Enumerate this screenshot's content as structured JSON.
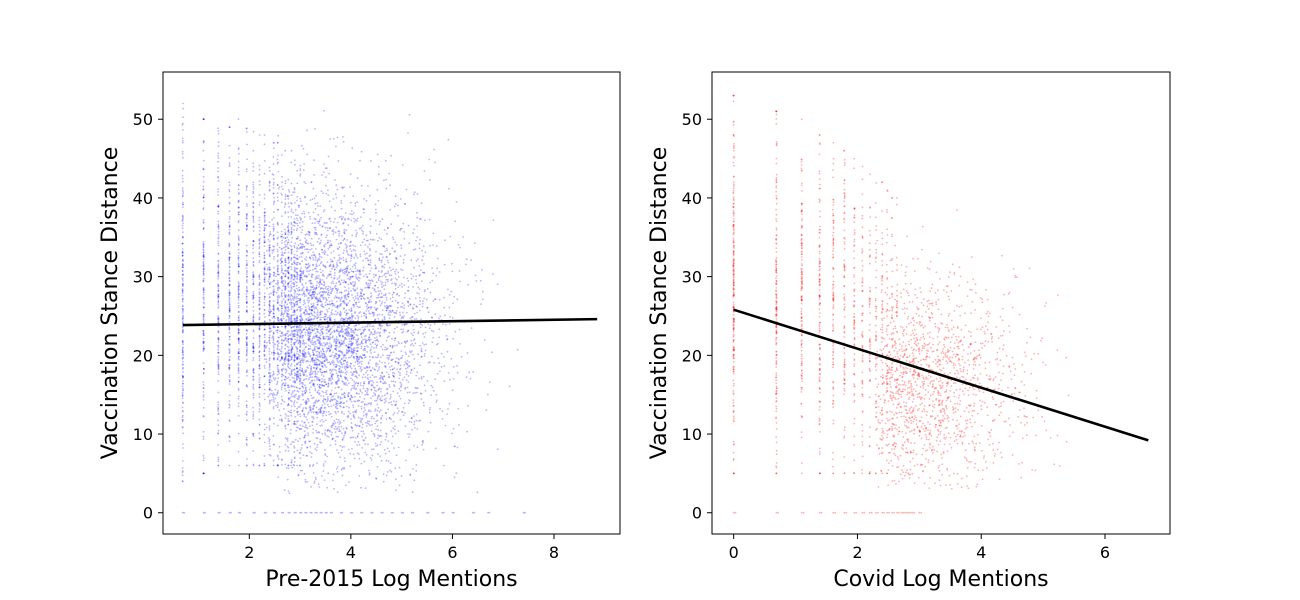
{
  "chart_data": [
    {
      "type": "scatter",
      "title": "",
      "xlabel": "Pre-2015 Log Mentions",
      "ylabel": "Vaccination Stance Distance",
      "xlim": [
        0.3,
        9.3
      ],
      "ylim": [
        -2.7,
        56.0
      ],
      "xticks": [
        2,
        4,
        6,
        8
      ],
      "yticks": [
        0,
        10,
        20,
        30,
        40,
        50
      ],
      "point_color": "#0000ff",
      "point_opacity": 0.28,
      "line_color": "#000000",
      "grid": false,
      "stripes": [
        {
          "x": 0.69,
          "ymin": 4,
          "ymax": 52,
          "n": 170
        },
        {
          "x": 1.1,
          "ymin": 5,
          "ymax": 50,
          "n": 150
        },
        {
          "x": 1.39,
          "ymin": 6,
          "ymax": 49,
          "n": 140
        },
        {
          "x": 1.61,
          "ymin": 6,
          "ymax": 49,
          "n": 130
        },
        {
          "x": 1.79,
          "ymin": 6,
          "ymax": 50,
          "n": 130
        },
        {
          "x": 1.95,
          "ymin": 6,
          "ymax": 49,
          "n": 120
        },
        {
          "x": 2.08,
          "ymin": 6,
          "ymax": 49,
          "n": 120
        },
        {
          "x": 2.2,
          "ymin": 6,
          "ymax": 48,
          "n": 110
        },
        {
          "x": 2.3,
          "ymin": 6,
          "ymax": 48,
          "n": 110
        },
        {
          "x": 2.4,
          "ymin": 6,
          "ymax": 48,
          "n": 100
        },
        {
          "x": 2.48,
          "ymin": 6,
          "ymax": 47,
          "n": 100
        },
        {
          "x": 2.56,
          "ymin": 6,
          "ymax": 47,
          "n": 90
        },
        {
          "x": 2.64,
          "ymin": 6,
          "ymax": 47,
          "n": 90
        },
        {
          "x": 2.71,
          "ymin": 6,
          "ymax": 46,
          "n": 80
        },
        {
          "x": 2.77,
          "ymin": 6,
          "ymax": 46,
          "n": 80
        },
        {
          "x": 2.83,
          "ymin": 6,
          "ymax": 46,
          "n": 70
        },
        {
          "x": 2.89,
          "ymin": 6,
          "ymax": 45,
          "n": 70
        },
        {
          "x": 2.94,
          "ymin": 6,
          "ymax": 45,
          "n": 60
        },
        {
          "x": 3.0,
          "ymin": 6,
          "ymax": 45,
          "n": 60
        }
      ],
      "cloud": {
        "x_center": 3.4,
        "x_spread": 1.15,
        "x_min": 2.3,
        "x_max": 8.0,
        "y_center": 22.5,
        "y_spread": 8.5,
        "y_min": 2,
        "y_max": 53,
        "n": 4200
      },
      "zeros": {
        "xs": [
          0.69,
          1.1,
          1.39,
          1.61,
          1.79,
          2.08,
          2.3,
          2.48,
          2.64,
          2.77,
          2.89,
          3.0,
          3.1,
          3.2,
          3.3,
          3.4,
          3.5,
          3.6,
          3.8,
          4.0,
          4.2,
          4.4,
          4.6,
          4.8,
          5.0,
          5.2,
          5.5,
          5.8,
          6.0,
          6.4,
          6.7,
          7.4
        ],
        "y": 0
      },
      "fit": {
        "x": [
          0.69,
          8.85
        ],
        "y": [
          23.85,
          24.6
        ]
      }
    },
    {
      "type": "scatter",
      "title": "",
      "xlabel": "Covid Log Mentions",
      "ylabel": "Vaccination Stance Distance",
      "xlim": [
        -0.35,
        7.05
      ],
      "ylim": [
        -2.7,
        56.0
      ],
      "xticks": [
        0,
        2,
        4,
        6
      ],
      "yticks": [
        0,
        10,
        20,
        30,
        40,
        50
      ],
      "point_color": "#ff0000",
      "point_opacity": 0.3,
      "line_color": "#000000",
      "grid": false,
      "stripes": [
        {
          "x": 0.0,
          "ymin": 5,
          "ymax": 53,
          "n": 220
        },
        {
          "x": 0.69,
          "ymin": 5,
          "ymax": 51,
          "n": 170
        },
        {
          "x": 1.1,
          "ymin": 5,
          "ymax": 50,
          "n": 140
        },
        {
          "x": 1.39,
          "ymin": 5,
          "ymax": 48,
          "n": 120
        },
        {
          "x": 1.61,
          "ymin": 5,
          "ymax": 47,
          "n": 100
        },
        {
          "x": 1.79,
          "ymin": 5,
          "ymax": 46,
          "n": 90
        },
        {
          "x": 1.95,
          "ymin": 5,
          "ymax": 45,
          "n": 75
        },
        {
          "x": 2.08,
          "ymin": 5,
          "ymax": 44,
          "n": 65
        },
        {
          "x": 2.2,
          "ymin": 5,
          "ymax": 43,
          "n": 55
        },
        {
          "x": 2.3,
          "ymin": 5,
          "ymax": 42,
          "n": 50
        },
        {
          "x": 2.4,
          "ymin": 5,
          "ymax": 42,
          "n": 45
        },
        {
          "x": 2.48,
          "ymin": 5,
          "ymax": 41,
          "n": 40
        },
        {
          "x": 2.56,
          "ymin": 5,
          "ymax": 40,
          "n": 35
        },
        {
          "x": 2.64,
          "ymin": 5,
          "ymax": 40,
          "n": 30
        }
      ],
      "cloud": {
        "x_center": 2.9,
        "x_spread": 0.9,
        "x_min": 2.3,
        "x_max": 6.0,
        "y_center": 16,
        "y_spread": 7,
        "y_min": 3,
        "y_max": 45,
        "n": 1500
      },
      "zeros": {
        "xs": [
          0.0,
          0.69,
          1.1,
          1.39,
          1.61,
          1.79,
          1.95,
          2.08,
          2.2,
          2.3,
          2.4,
          2.48,
          2.56,
          2.64,
          2.71,
          2.77,
          2.83,
          2.89,
          3.0
        ],
        "y": 0
      },
      "fit": {
        "x": [
          0.0,
          6.7
        ],
        "y": [
          25.8,
          9.2
        ]
      }
    }
  ]
}
